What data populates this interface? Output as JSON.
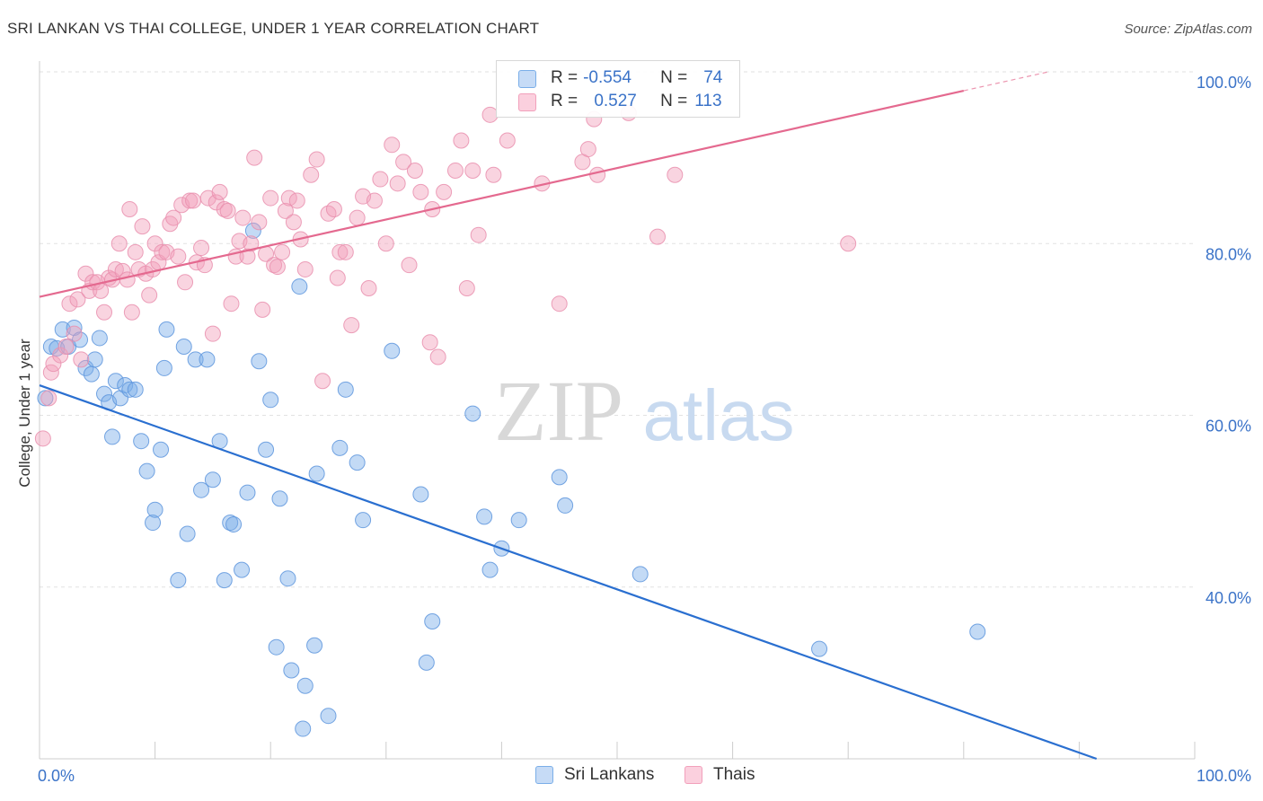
{
  "title": "SRI LANKAN VS THAI COLLEGE, UNDER 1 YEAR CORRELATION CHART",
  "source": "Source: ZipAtlas.com",
  "watermark": {
    "zip": "ZIP",
    "atlas": "atlas"
  },
  "legend": {
    "rows": [
      {
        "r_label": "R =",
        "r_value": "-0.554",
        "n_label": "N =",
        "n_value": "74",
        "color": "#a9c8f0"
      },
      {
        "r_label": "R =",
        "r_value": "0.527",
        "n_label": "N =",
        "n_value": "113",
        "color": "#f6b7cc"
      }
    ]
  },
  "bottom_legend": [
    {
      "label": "Sri Lankans",
      "color": "#a9c8f0"
    },
    {
      "label": "Thais",
      "color": "#f6b7cc"
    }
  ],
  "chart_data": {
    "type": "scatter",
    "title": "SRI LANKAN VS THAI COLLEGE, UNDER 1 YEAR CORRELATION CHART",
    "xlabel": "",
    "ylabel": "College, Under 1 year",
    "xlim": [
      0,
      100
    ],
    "ylim": [
      20,
      100
    ],
    "x_tick_labels": [
      "0.0%",
      "100.0%"
    ],
    "y_tick_labels": [
      "40.0%",
      "60.0%",
      "80.0%",
      "100.0%"
    ],
    "y_ticks": [
      40,
      60,
      80,
      100
    ],
    "grid": true,
    "legend_position": "top-center",
    "colors": {
      "sri_lankans": "#7aaee8",
      "sri_lankans_line": "#2a6fd0",
      "thais": "#f2a0bb",
      "thais_line": "#e4698f",
      "axis_text": "#3b73c8"
    },
    "series": [
      {
        "name": "Sri Lankans",
        "r": -0.554,
        "n": 74,
        "trend": {
          "x": [
            0,
            91.5
          ],
          "y": [
            63.5,
            20
          ]
        },
        "points": [
          [
            0.5,
            62
          ],
          [
            1,
            68
          ],
          [
            1.5,
            67.8
          ],
          [
            2,
            70
          ],
          [
            2.5,
            68
          ],
          [
            3,
            70.2
          ],
          [
            3.5,
            68.8
          ],
          [
            4,
            65.5
          ],
          [
            4.5,
            64.8
          ],
          [
            4.8,
            66.5
          ],
          [
            5.2,
            69
          ],
          [
            5.6,
            62.5
          ],
          [
            6,
            61.5
          ],
          [
            6.3,
            57.5
          ],
          [
            6.6,
            64
          ],
          [
            7,
            62
          ],
          [
            7.4,
            63.5
          ],
          [
            7.8,
            63
          ],
          [
            8.3,
            63
          ],
          [
            8.8,
            57
          ],
          [
            9.3,
            53.5
          ],
          [
            9.8,
            47.5
          ],
          [
            10,
            49
          ],
          [
            10.5,
            56
          ],
          [
            10.8,
            65.5
          ],
          [
            11,
            70
          ],
          [
            12,
            40.8
          ],
          [
            12.5,
            68
          ],
          [
            12.8,
            46.2
          ],
          [
            13.5,
            66.5
          ],
          [
            14,
            51.3
          ],
          [
            14.5,
            66.5
          ],
          [
            15,
            52.5
          ],
          [
            15.6,
            57
          ],
          [
            16,
            40.8
          ],
          [
            16.5,
            47.5
          ],
          [
            16.8,
            47.3
          ],
          [
            17.5,
            42
          ],
          [
            18,
            51
          ],
          [
            18.5,
            81.5
          ],
          [
            19,
            66.3
          ],
          [
            19.6,
            56
          ],
          [
            20,
            61.8
          ],
          [
            20.5,
            33
          ],
          [
            20.8,
            50.3
          ],
          [
            21.5,
            41
          ],
          [
            21.8,
            30.3
          ],
          [
            22.5,
            75
          ],
          [
            22.8,
            23.5
          ],
          [
            23,
            28.5
          ],
          [
            23.8,
            33.2
          ],
          [
            24,
            53.2
          ],
          [
            25,
            25
          ],
          [
            26,
            56.2
          ],
          [
            26.5,
            63
          ],
          [
            27.5,
            54.5
          ],
          [
            28,
            47.8
          ],
          [
            30.5,
            67.5
          ],
          [
            33,
            50.8
          ],
          [
            33.5,
            31.2
          ],
          [
            34,
            36
          ],
          [
            37.5,
            60.2
          ],
          [
            38.5,
            48.2
          ],
          [
            39,
            42
          ],
          [
            40,
            44.5
          ],
          [
            41.5,
            47.8
          ],
          [
            45,
            52.8
          ],
          [
            45.5,
            49.5
          ],
          [
            52,
            41.5
          ],
          [
            67.5,
            32.8
          ],
          [
            81.2,
            34.8
          ]
        ]
      },
      {
        "name": "Thais",
        "r": 0.527,
        "n": 113,
        "trend": {
          "x": [
            0,
            80
          ],
          "y": [
            73.8,
            97.8
          ]
        },
        "points": [
          [
            0.3,
            57.3
          ],
          [
            0.8,
            62
          ],
          [
            1,
            65
          ],
          [
            1.2,
            66
          ],
          [
            1.8,
            67
          ],
          [
            2.3,
            68
          ],
          [
            2.6,
            73
          ],
          [
            3,
            69.5
          ],
          [
            3.3,
            73.5
          ],
          [
            3.6,
            66.5
          ],
          [
            4,
            76.5
          ],
          [
            4.3,
            74.5
          ],
          [
            4.6,
            75.5
          ],
          [
            5,
            75.5
          ],
          [
            5.3,
            74.5
          ],
          [
            5.6,
            72
          ],
          [
            6,
            76
          ],
          [
            6.3,
            75.8
          ],
          [
            6.6,
            77
          ],
          [
            6.9,
            80
          ],
          [
            7.2,
            76.8
          ],
          [
            7.6,
            75.8
          ],
          [
            7.8,
            84
          ],
          [
            8,
            72
          ],
          [
            8.3,
            79
          ],
          [
            8.6,
            77
          ],
          [
            8.9,
            82
          ],
          [
            9.2,
            76.5
          ],
          [
            9.5,
            74
          ],
          [
            9.8,
            77
          ],
          [
            10,
            80
          ],
          [
            10.3,
            77.8
          ],
          [
            10.6,
            79
          ],
          [
            11,
            79
          ],
          [
            11.3,
            82.3
          ],
          [
            11.6,
            83
          ],
          [
            12,
            78.5
          ],
          [
            12.3,
            84.5
          ],
          [
            12.6,
            75.5
          ],
          [
            13,
            85
          ],
          [
            13.3,
            85
          ],
          [
            13.6,
            77.8
          ],
          [
            14,
            79.5
          ],
          [
            14.3,
            77.5
          ],
          [
            14.6,
            85.3
          ],
          [
            15,
            69.5
          ],
          [
            15.3,
            84.8
          ],
          [
            15.6,
            86
          ],
          [
            16,
            84
          ],
          [
            16.3,
            83.8
          ],
          [
            16.6,
            73
          ],
          [
            17,
            78.5
          ],
          [
            17.3,
            80.3
          ],
          [
            17.6,
            83
          ],
          [
            18,
            78.5
          ],
          [
            18.3,
            80
          ],
          [
            18.6,
            90
          ],
          [
            19,
            82.5
          ],
          [
            19.3,
            72.3
          ],
          [
            19.6,
            78.8
          ],
          [
            20,
            85.3
          ],
          [
            20.3,
            77.5
          ],
          [
            20.6,
            77.3
          ],
          [
            21,
            79
          ],
          [
            21.3,
            83.8
          ],
          [
            21.6,
            85.3
          ],
          [
            22,
            82.5
          ],
          [
            22.3,
            85
          ],
          [
            22.6,
            80.5
          ],
          [
            23,
            77
          ],
          [
            23.5,
            88
          ],
          [
            24,
            89.8
          ],
          [
            24.5,
            64
          ],
          [
            25,
            83.5
          ],
          [
            25.5,
            84
          ],
          [
            25.8,
            76
          ],
          [
            26,
            79
          ],
          [
            26.5,
            79
          ],
          [
            27,
            70.5
          ],
          [
            27.5,
            83
          ],
          [
            28,
            85.5
          ],
          [
            28.5,
            74.8
          ],
          [
            29,
            85
          ],
          [
            29.5,
            87.5
          ],
          [
            30,
            80
          ],
          [
            30.5,
            91.5
          ],
          [
            31,
            87
          ],
          [
            31.5,
            89.5
          ],
          [
            32,
            77.5
          ],
          [
            32.5,
            88.5
          ],
          [
            33,
            86
          ],
          [
            33.8,
            68.5
          ],
          [
            34,
            84
          ],
          [
            34.5,
            66.8
          ],
          [
            35,
            86
          ],
          [
            36,
            88.5
          ],
          [
            36.5,
            92
          ],
          [
            37,
            74.8
          ],
          [
            37.5,
            88.5
          ],
          [
            38,
            81
          ],
          [
            39,
            95
          ],
          [
            39.3,
            88
          ],
          [
            40.5,
            92
          ],
          [
            43.5,
            87
          ],
          [
            45,
            73
          ],
          [
            47,
            89.5
          ],
          [
            47.5,
            91
          ],
          [
            48,
            94.5
          ],
          [
            48.3,
            88
          ],
          [
            51,
            95.2
          ],
          [
            53.5,
            80.8
          ],
          [
            55,
            88
          ],
          [
            70,
            80
          ]
        ]
      }
    ]
  }
}
